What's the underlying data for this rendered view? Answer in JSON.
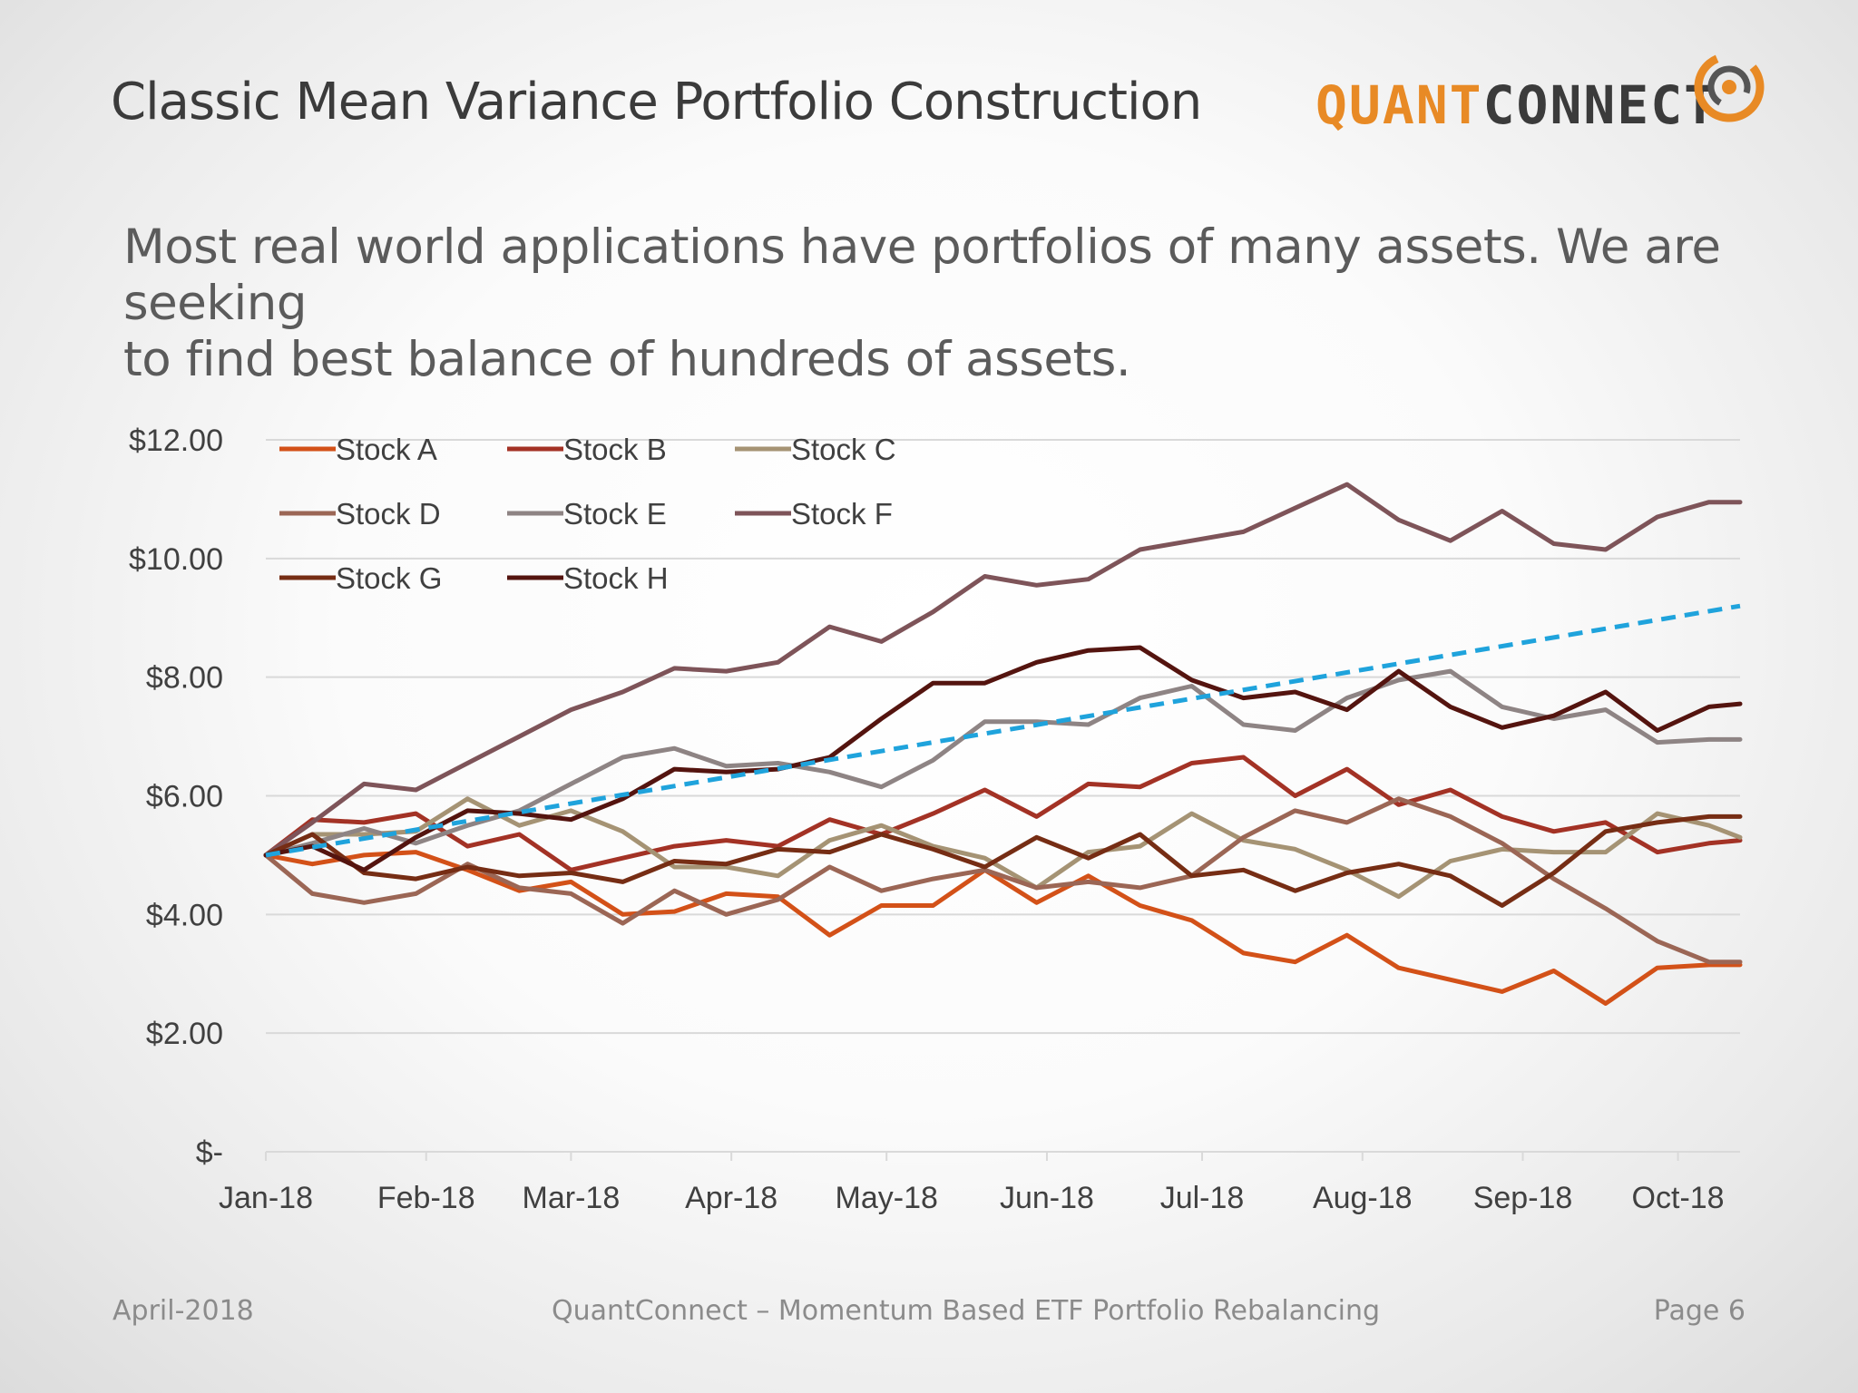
{
  "slide": {
    "title": "Classic Mean Variance Portfolio Construction",
    "subtitle_line1": "Most real world applications have portfolios of many assets. We are seeking",
    "subtitle_line2": "to find best balance of hundreds of assets."
  },
  "logo": {
    "part1": "QUANT",
    "part2": "CONNECT"
  },
  "footer": {
    "date": "April-2018",
    "center": "QuantConnect – Momentum Based ETF Portfolio Rebalancing",
    "page": "Page 6"
  },
  "colors": {
    "logo_orange": "#e88a25",
    "trend_line": "#1fa3dc"
  },
  "chart_data": {
    "type": "line",
    "grid": true,
    "legend_position": "top-left",
    "ylim": [
      0,
      12
    ],
    "y_ticks": [
      {
        "value": 0,
        "label": "$-"
      },
      {
        "value": 2,
        "label": "$2.00"
      },
      {
        "value": 4,
        "label": "$4.00"
      },
      {
        "value": 6,
        "label": "$6.00"
      },
      {
        "value": 8,
        "label": "$8.00"
      },
      {
        "value": 10,
        "label": "$10.00"
      },
      {
        "value": 12,
        "label": "$12.00"
      }
    ],
    "x_ticks": [
      {
        "date": "2018-01-01",
        "label": "Jan-18"
      },
      {
        "date": "2018-02-01",
        "label": "Feb-18"
      },
      {
        "date": "2018-03-01",
        "label": "Mar-18"
      },
      {
        "date": "2018-04-01",
        "label": "Apr-18"
      },
      {
        "date": "2018-05-01",
        "label": "May-18"
      },
      {
        "date": "2018-06-01",
        "label": "Jun-18"
      },
      {
        "date": "2018-07-01",
        "label": "Jul-18"
      },
      {
        "date": "2018-08-01",
        "label": "Aug-18"
      },
      {
        "date": "2018-09-01",
        "label": "Sep-18"
      },
      {
        "date": "2018-10-01",
        "label": "Oct-18"
      }
    ],
    "x": [
      "2018-01-01",
      "2018-01-10",
      "2018-01-20",
      "2018-01-30",
      "2018-02-09",
      "2018-02-19",
      "2018-03-01",
      "2018-03-11",
      "2018-03-21",
      "2018-03-31",
      "2018-04-10",
      "2018-04-20",
      "2018-04-30",
      "2018-05-10",
      "2018-05-20",
      "2018-05-30",
      "2018-06-09",
      "2018-06-19",
      "2018-06-29",
      "2018-07-09",
      "2018-07-19",
      "2018-07-29",
      "2018-08-08",
      "2018-08-18",
      "2018-08-28",
      "2018-09-07",
      "2018-09-17",
      "2018-09-27",
      "2018-10-07",
      "2018-10-13"
    ],
    "series": [
      {
        "name": "Stock A",
        "color": "#d35118",
        "values": [
          5.0,
          4.85,
          5.0,
          5.05,
          4.75,
          4.4,
          4.55,
          4.0,
          4.05,
          4.35,
          4.3,
          3.65,
          4.15,
          4.15,
          4.75,
          4.2,
          4.65,
          4.15,
          3.9,
          3.35,
          3.2,
          3.65,
          3.1,
          2.9,
          2.7,
          3.05,
          2.5,
          3.1,
          3.15,
          3.15
        ]
      },
      {
        "name": "Stock B",
        "color": "#a33225",
        "values": [
          5.0,
          5.6,
          5.55,
          5.7,
          5.15,
          5.35,
          4.75,
          4.95,
          5.15,
          5.25,
          5.15,
          5.6,
          5.35,
          5.7,
          6.1,
          5.65,
          6.2,
          6.15,
          6.55,
          6.65,
          6.0,
          6.45,
          5.85,
          6.1,
          5.65,
          5.4,
          5.55,
          5.05,
          5.2,
          5.25
        ]
      },
      {
        "name": "Stock C",
        "color": "#a59374",
        "values": [
          5.0,
          5.35,
          5.35,
          5.4,
          5.95,
          5.5,
          5.75,
          5.4,
          4.8,
          4.8,
          4.65,
          5.25,
          5.5,
          5.15,
          4.95,
          4.45,
          5.05,
          5.15,
          5.7,
          5.25,
          5.1,
          4.75,
          4.3,
          4.9,
          5.1,
          5.05,
          5.05,
          5.7,
          5.5,
          5.3
        ]
      },
      {
        "name": "Stock D",
        "color": "#9b6655",
        "values": [
          5.0,
          4.35,
          4.2,
          4.35,
          4.85,
          4.45,
          4.35,
          3.85,
          4.4,
          4.0,
          4.25,
          4.8,
          4.4,
          4.6,
          4.75,
          4.45,
          4.55,
          4.45,
          4.65,
          5.3,
          5.75,
          5.55,
          5.95,
          5.65,
          5.2,
          4.6,
          4.1,
          3.55,
          3.2,
          3.2
        ]
      },
      {
        "name": "Stock E",
        "color": "#8e8484",
        "values": [
          5.0,
          5.2,
          5.45,
          5.2,
          5.5,
          5.75,
          6.2,
          6.65,
          6.8,
          6.5,
          6.55,
          6.4,
          6.15,
          6.6,
          7.25,
          7.25,
          7.2,
          7.65,
          7.85,
          7.2,
          7.1,
          7.65,
          7.95,
          8.1,
          7.5,
          7.3,
          7.45,
          6.9,
          6.95,
          6.95
        ]
      },
      {
        "name": "Stock F",
        "color": "#7e5459",
        "values": [
          5.0,
          5.55,
          6.2,
          6.1,
          6.55,
          7.0,
          7.45,
          7.75,
          8.15,
          8.1,
          8.25,
          8.85,
          8.6,
          9.1,
          9.7,
          9.55,
          9.65,
          10.15,
          10.3,
          10.45,
          10.85,
          11.25,
          10.65,
          10.3,
          10.8,
          10.25,
          10.15,
          10.7,
          10.95,
          10.95
        ]
      },
      {
        "name": "Stock G",
        "color": "#762d14",
        "values": [
          5.0,
          5.35,
          4.7,
          4.6,
          4.8,
          4.65,
          4.7,
          4.55,
          4.9,
          4.85,
          5.1,
          5.05,
          5.35,
          5.1,
          4.8,
          5.3,
          4.95,
          5.35,
          4.65,
          4.75,
          4.4,
          4.7,
          4.85,
          4.65,
          4.15,
          4.7,
          5.4,
          5.55,
          5.65,
          5.65
        ]
      },
      {
        "name": "Stock H",
        "color": "#54140f",
        "values": [
          5.0,
          5.15,
          4.75,
          5.3,
          5.75,
          5.7,
          5.6,
          5.95,
          6.45,
          6.4,
          6.45,
          6.65,
          7.3,
          7.9,
          7.9,
          8.25,
          8.45,
          8.5,
          7.95,
          7.65,
          7.75,
          7.45,
          8.1,
          7.5,
          7.15,
          7.35,
          7.75,
          7.1,
          7.5,
          7.55
        ]
      }
    ],
    "trend_line": {
      "style": "dashed",
      "color": "#1fa3dc",
      "start": {
        "x": "2018-01-01",
        "y": 5.0
      },
      "end": {
        "x": "2018-10-13",
        "y": 9.2
      }
    }
  }
}
